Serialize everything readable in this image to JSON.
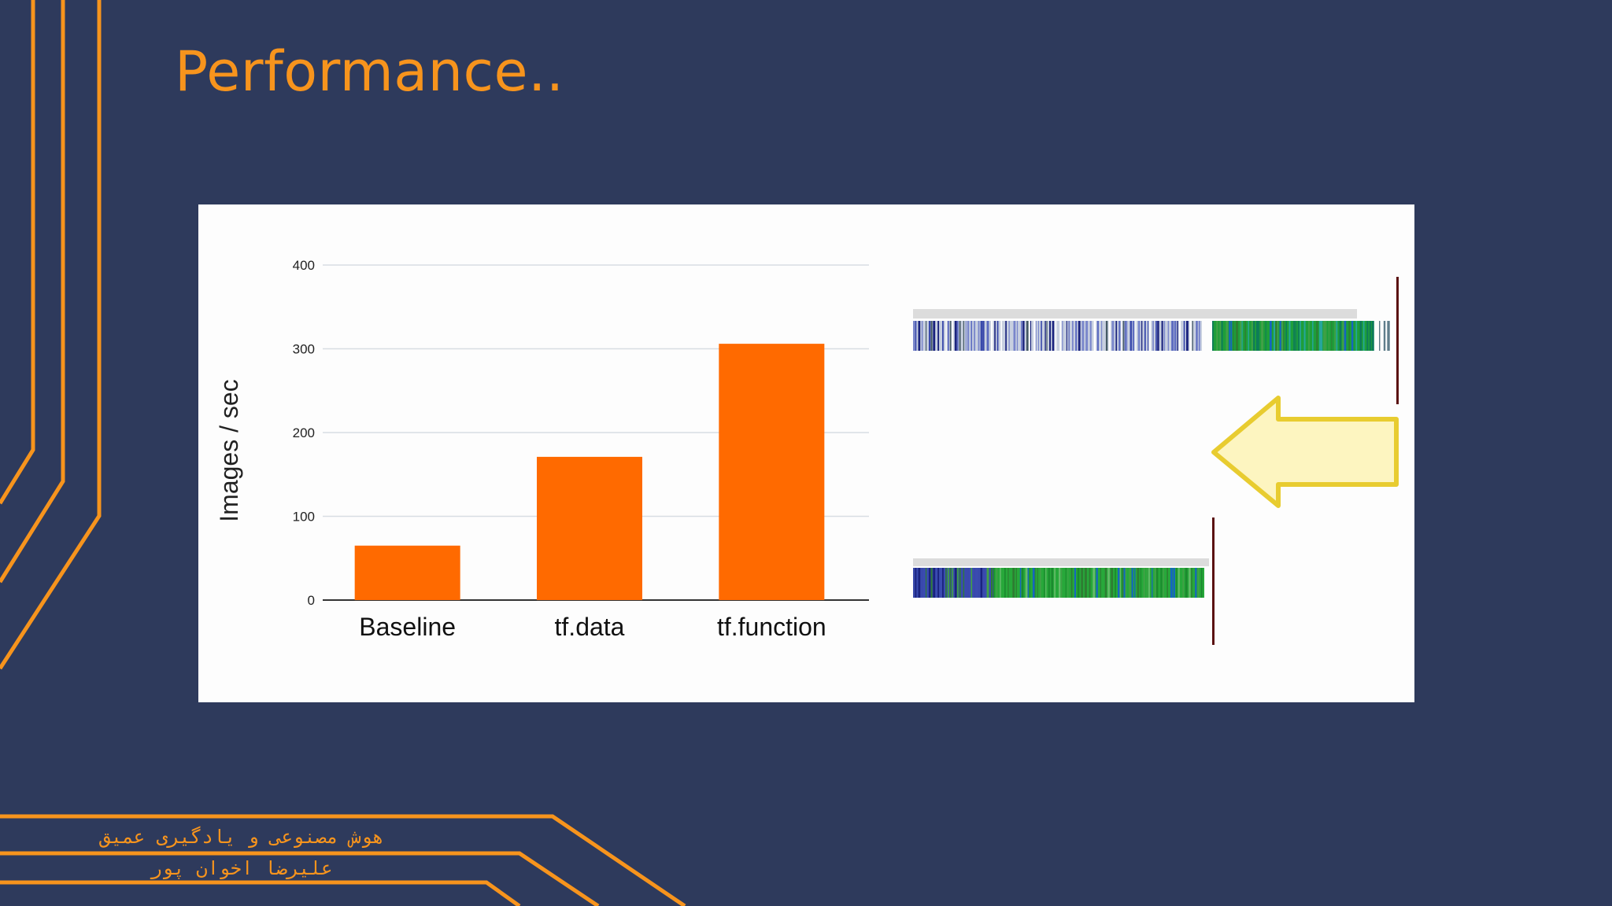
{
  "slide": {
    "title": "Performance..",
    "footer_line1": "هوش مصنوعی و یادگیری عمیق",
    "footer_line2": "علیرضا اخوان پور",
    "accent_color": "#f7941d",
    "background_color": "#2e3a5c"
  },
  "chart_data": {
    "type": "bar",
    "title": "",
    "xlabel": "",
    "ylabel": "Images / sec",
    "categories": [
      "Baseline",
      "tf.data",
      "tf.function"
    ],
    "values": [
      65,
      171,
      306
    ],
    "ylim": [
      0,
      400
    ],
    "yticks": [
      0,
      100,
      200,
      300,
      400
    ],
    "grid": true,
    "bar_color": "#ff6a00"
  },
  "timeline_illustration": {
    "arrow_icon": "left-arrow-icon",
    "arrow_color": "#fdf5c0",
    "arrow_outline": "#e8cc30"
  }
}
